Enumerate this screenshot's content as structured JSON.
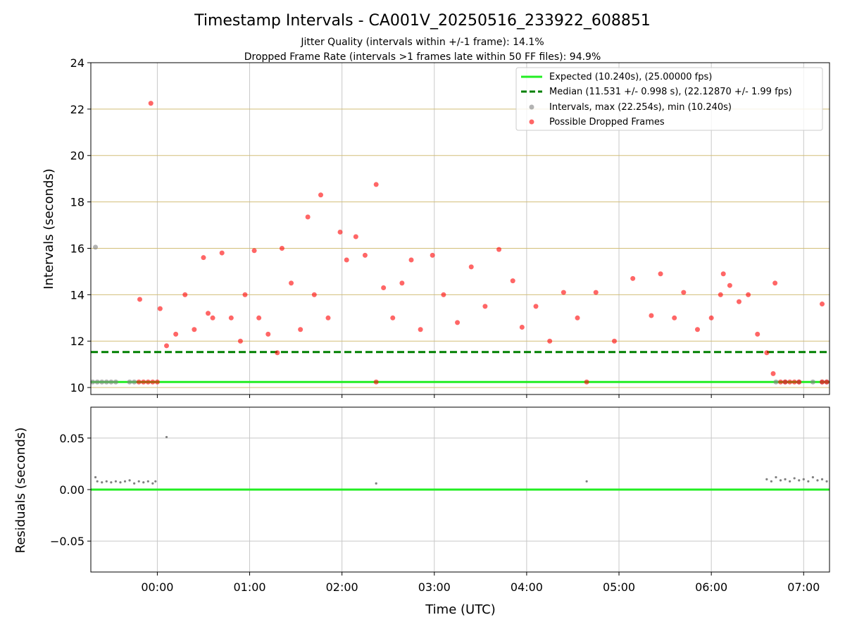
{
  "chart_data": {
    "title": "Timestamp Intervals - CA001V_20250516_233922_608851",
    "subtitle_lines": [
      "Jitter Quality (intervals within +/-1 frame): 14.1%",
      "Dropped Frame Rate (intervals >1 frames late within 50 FF files): 94.9%"
    ],
    "colors": {
      "expected": "#22ee22",
      "median": "#008000",
      "interval": "#808080",
      "dropped": "#ff0000",
      "hgrid_top": "#d2be78",
      "grid": "#c8c8c8"
    },
    "panels": [
      {
        "type": "scatter",
        "ylabel": "Intervals (seconds)",
        "ylim": [
          9.7,
          24
        ],
        "yticks": [
          10,
          12,
          14,
          16,
          18,
          20,
          22,
          24
        ],
        "grid": true,
        "legend_position": "top-right",
        "legend": [
          "Expected (10.240s), (25.00000 fps)",
          "Median (11.531 +/- 0.998 s), (22.12870 +/- 1.99 fps)",
          "Intervals, max (22.254s), min (10.240s)",
          "Possible Dropped Frames"
        ],
        "expected_value": 10.24,
        "median_value": 11.531,
        "interval_points": [
          [
            -0.7,
            10.24
          ],
          [
            -0.65,
            10.24
          ],
          [
            -0.6,
            10.24
          ],
          [
            -0.55,
            10.24
          ],
          [
            -0.5,
            10.24
          ],
          [
            -0.45,
            10.24
          ],
          [
            -0.3,
            10.24
          ],
          [
            -0.25,
            10.24
          ],
          [
            -0.67,
            16.05
          ],
          [
            6.7,
            10.24
          ],
          [
            6.8,
            10.24
          ],
          [
            6.95,
            10.24
          ],
          [
            7.1,
            10.24
          ],
          [
            7.2,
            10.24
          ],
          [
            7.25,
            10.24
          ]
        ],
        "dropped_points": [
          [
            -0.07,
            22.25
          ],
          [
            -0.19,
            13.8
          ],
          [
            4.65,
            10.24
          ],
          [
            2.37,
            10.24
          ],
          [
            0.03,
            13.4
          ],
          [
            0.1,
            11.8
          ],
          [
            0.2,
            12.3
          ],
          [
            0.3,
            14.0
          ],
          [
            0.4,
            12.5
          ],
          [
            0.5,
            15.6
          ],
          [
            0.55,
            13.2
          ],
          [
            0.6,
            13.0
          ],
          [
            0.7,
            15.8
          ],
          [
            0.8,
            13.0
          ],
          [
            0.9,
            12.0
          ],
          [
            0.95,
            14.0
          ],
          [
            1.05,
            15.9
          ],
          [
            1.1,
            13.0
          ],
          [
            1.2,
            12.3
          ],
          [
            1.3,
            11.5
          ],
          [
            1.35,
            16.0
          ],
          [
            1.45,
            14.5
          ],
          [
            1.55,
            12.5
          ],
          [
            1.63,
            17.35
          ],
          [
            1.7,
            14.0
          ],
          [
            1.77,
            18.3
          ],
          [
            1.85,
            13.0
          ],
          [
            1.98,
            16.7
          ],
          [
            2.05,
            15.5
          ],
          [
            2.15,
            16.5
          ],
          [
            2.25,
            15.7
          ],
          [
            2.37,
            18.75
          ],
          [
            2.45,
            14.3
          ],
          [
            2.55,
            13.0
          ],
          [
            2.65,
            14.5
          ],
          [
            2.75,
            15.5
          ],
          [
            2.85,
            12.5
          ],
          [
            2.98,
            15.7
          ],
          [
            3.1,
            14.0
          ],
          [
            3.25,
            12.8
          ],
          [
            3.4,
            15.2
          ],
          [
            3.55,
            13.5
          ],
          [
            3.7,
            15.95
          ],
          [
            3.85,
            14.6
          ],
          [
            3.95,
            12.6
          ],
          [
            4.1,
            13.5
          ],
          [
            4.25,
            12.0
          ],
          [
            4.4,
            14.1
          ],
          [
            4.55,
            13.0
          ],
          [
            4.75,
            14.1
          ],
          [
            4.95,
            12.0
          ],
          [
            5.15,
            14.7
          ],
          [
            5.35,
            13.1
          ],
          [
            5.45,
            14.9
          ],
          [
            5.6,
            13.0
          ],
          [
            5.7,
            14.1
          ],
          [
            5.85,
            12.5
          ],
          [
            6.0,
            13.0
          ],
          [
            6.1,
            14.0
          ],
          [
            6.13,
            14.9
          ],
          [
            6.2,
            14.4
          ],
          [
            6.3,
            13.7
          ],
          [
            6.4,
            14.0
          ],
          [
            6.5,
            12.3
          ],
          [
            6.6,
            11.5
          ],
          [
            6.67,
            10.6
          ],
          [
            6.69,
            14.5
          ],
          [
            7.2,
            13.6
          ],
          [
            6.75,
            10.24
          ],
          [
            6.8,
            10.24
          ],
          [
            6.85,
            10.24
          ],
          [
            6.9,
            10.24
          ],
          [
            6.95,
            10.24
          ],
          [
            7.2,
            10.24
          ],
          [
            7.25,
            10.24
          ],
          [
            -0.2,
            10.24
          ],
          [
            -0.15,
            10.24
          ],
          [
            -0.1,
            10.24
          ],
          [
            -0.05,
            10.24
          ],
          [
            0.0,
            10.24
          ]
        ]
      },
      {
        "type": "scatter",
        "ylabel": "Residuals (seconds)",
        "ylim": [
          -0.08,
          0.08
        ],
        "yticks": [
          -0.05,
          0.0,
          0.05
        ],
        "ytick_labels": [
          "−0.05",
          "0.00",
          "0.05"
        ],
        "xlabel": "Time (UTC)",
        "grid": true,
        "expected_value": 0.0,
        "residual_points": [
          [
            -0.67,
            0.012
          ],
          [
            -0.65,
            0.008
          ],
          [
            -0.6,
            0.007
          ],
          [
            -0.55,
            0.008
          ],
          [
            -0.5,
            0.007
          ],
          [
            -0.45,
            0.008
          ],
          [
            -0.4,
            0.007
          ],
          [
            -0.35,
            0.008
          ],
          [
            -0.3,
            0.009
          ],
          [
            -0.25,
            0.006
          ],
          [
            -0.2,
            0.008
          ],
          [
            -0.15,
            0.007
          ],
          [
            -0.1,
            0.008
          ],
          [
            -0.05,
            0.006
          ],
          [
            -0.02,
            0.008
          ],
          [
            0.1,
            0.051
          ],
          [
            2.37,
            0.006
          ],
          [
            4.65,
            0.008
          ],
          [
            6.6,
            0.01
          ],
          [
            6.65,
            0.008
          ],
          [
            6.7,
            0.012
          ],
          [
            6.75,
            0.009
          ],
          [
            6.8,
            0.01
          ],
          [
            6.85,
            0.008
          ],
          [
            6.9,
            0.011
          ],
          [
            6.95,
            0.009
          ],
          [
            7.0,
            0.01
          ],
          [
            7.05,
            0.008
          ],
          [
            7.1,
            0.012
          ],
          [
            7.15,
            0.009
          ],
          [
            7.2,
            0.01
          ],
          [
            7.25,
            0.008
          ]
        ]
      }
    ],
    "x_axis": {
      "label": "Time (UTC)",
      "ticks": [
        0,
        1,
        2,
        3,
        4,
        5,
        6,
        7
      ],
      "tick_labels": [
        "00:00",
        "01:00",
        "02:00",
        "03:00",
        "04:00",
        "05:00",
        "06:00",
        "07:00"
      ],
      "xlim": [
        -0.72,
        7.28
      ]
    }
  }
}
